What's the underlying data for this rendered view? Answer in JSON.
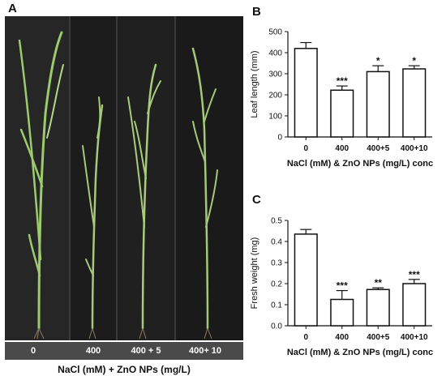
{
  "panel_labels": {
    "a": "A",
    "b": "B",
    "c": "C"
  },
  "photo": {
    "treatments": [
      "0",
      "400",
      "400 + 5",
      "400+ 10"
    ],
    "xlabel": "NaCl (mM) + ZnO NPs (mg/L)"
  },
  "chart_data": [
    {
      "type": "bar",
      "panel": "B",
      "categories": [
        "0",
        "400",
        "400+5",
        "400+10"
      ],
      "values": [
        420,
        222,
        310,
        323
      ],
      "errors": [
        28,
        20,
        28,
        15
      ],
      "significance": [
        "",
        "***",
        "*",
        "*"
      ],
      "xlabel": "NaCl (mM) & ZnO NPs (mg/L) conc",
      "ylabel": "Leaf length (mm)",
      "ylim": [
        0,
        500
      ],
      "yticks": [
        "0",
        "100",
        "200",
        "300",
        "400",
        "500"
      ]
    },
    {
      "type": "bar",
      "panel": "C",
      "categories": [
        "0",
        "400",
        "400+5",
        "400+10"
      ],
      "values": [
        0.435,
        0.125,
        0.172,
        0.2
      ],
      "errors": [
        0.022,
        0.042,
        0.008,
        0.02
      ],
      "significance": [
        "",
        "***",
        "**",
        "***"
      ],
      "xlabel": "NaCl (mM) & ZnO NPs (mg/L) conc",
      "ylabel": "Fresh weight (mg)",
      "ylim": [
        0,
        0.5
      ],
      "yticks": [
        "0.0",
        "0.1",
        "0.2",
        "0.3",
        "0.4",
        "0.5"
      ]
    }
  ]
}
